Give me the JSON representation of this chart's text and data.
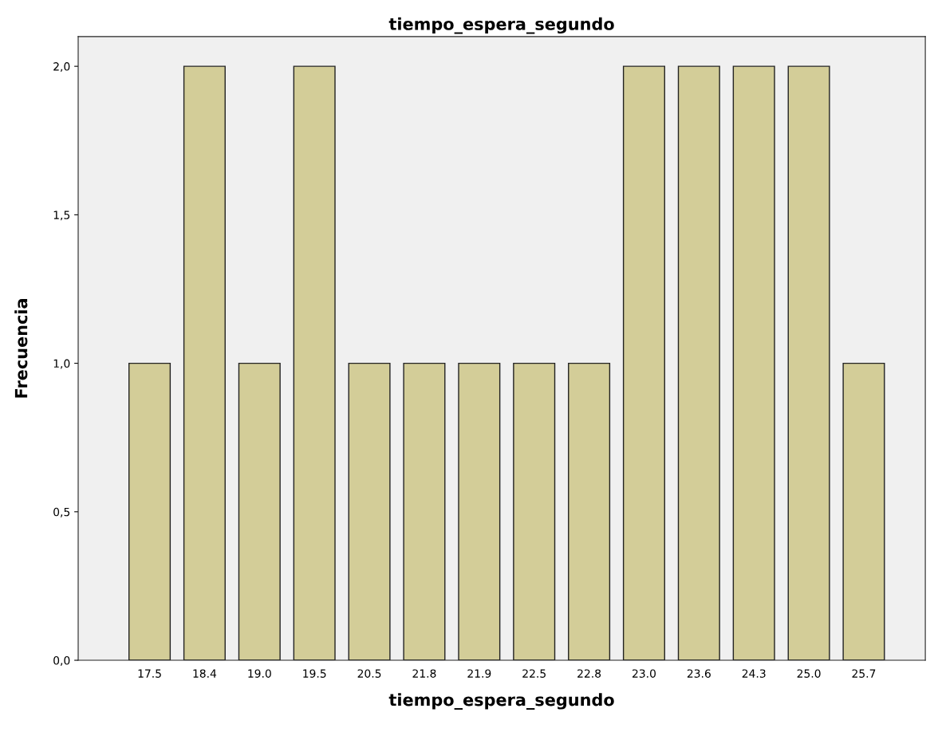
{
  "chart_data": {
    "type": "bar",
    "title": "tiempo_espera_segundo",
    "xlabel": "tiempo_espera_segundo",
    "ylabel": "Frecuencia",
    "categories": [
      "17.5",
      "18.4",
      "19.0",
      "19.5",
      "20.5",
      "21.8",
      "21.9",
      "22.5",
      "22.8",
      "23.0",
      "23.6",
      "24.3",
      "25.0",
      "25.7"
    ],
    "values": [
      1,
      2,
      1,
      2,
      1,
      1,
      1,
      1,
      1,
      2,
      2,
      2,
      2,
      1
    ],
    "color": "#d3cd98",
    "ylim": [
      0,
      2.1
    ],
    "yticks": [
      {
        "value": 0,
        "label": "0,0"
      },
      {
        "value": 0.5,
        "label": "0,5"
      },
      {
        "value": 1,
        "label": "1,0"
      },
      {
        "value": 1.5,
        "label": "1,5"
      },
      {
        "value": 2,
        "label": "2,0"
      }
    ],
    "grid": false
  }
}
